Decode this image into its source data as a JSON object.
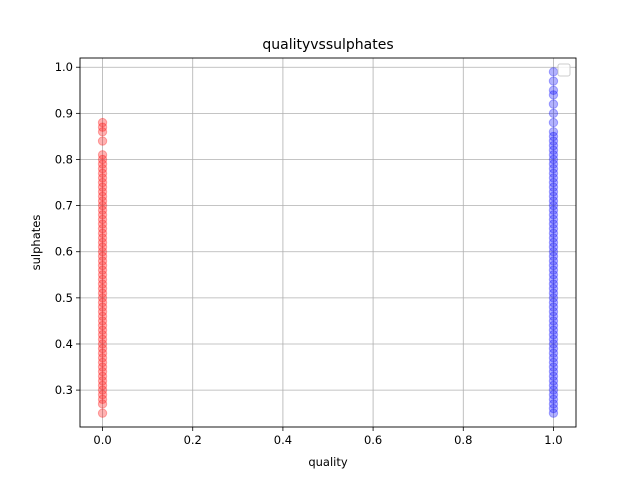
{
  "chart_data": {
    "type": "scatter",
    "title": "qualityvssulphates",
    "xlabel": "quality",
    "ylabel": "sulphates",
    "xlim": [
      -0.05,
      1.05
    ],
    "ylim": [
      0.22,
      1.02
    ],
    "xticks": [
      "0.0",
      "0.2",
      "0.4",
      "0.6",
      "0.8",
      "1.0"
    ],
    "xtick_values": [
      0.0,
      0.2,
      0.4,
      0.6,
      0.8,
      1.0
    ],
    "yticks": [
      "0.3",
      "0.4",
      "0.5",
      "0.6",
      "0.7",
      "0.8",
      "0.9",
      "1.0"
    ],
    "ytick_values": [
      0.3,
      0.4,
      0.5,
      0.6,
      0.7,
      0.8,
      0.9,
      1.0
    ],
    "grid": true,
    "legend": {
      "placement": "top-right",
      "entries": []
    },
    "series": [
      {
        "color": "#ff0000",
        "x": 0,
        "y": [
          0.25,
          0.27,
          0.28,
          0.29,
          0.3,
          0.31,
          0.32,
          0.33,
          0.34,
          0.35,
          0.36,
          0.37,
          0.38,
          0.39,
          0.4,
          0.41,
          0.42,
          0.43,
          0.44,
          0.45,
          0.46,
          0.47,
          0.48,
          0.49,
          0.5,
          0.51,
          0.52,
          0.53,
          0.54,
          0.55,
          0.56,
          0.57,
          0.58,
          0.59,
          0.6,
          0.61,
          0.62,
          0.63,
          0.64,
          0.65,
          0.66,
          0.67,
          0.68,
          0.69,
          0.7,
          0.71,
          0.72,
          0.73,
          0.74,
          0.75,
          0.76,
          0.77,
          0.78,
          0.79,
          0.8,
          0.81,
          0.84,
          0.86,
          0.87,
          0.88
        ]
      },
      {
        "color": "#0000ff",
        "x": 1,
        "y": [
          0.25,
          0.26,
          0.27,
          0.28,
          0.29,
          0.3,
          0.31,
          0.32,
          0.33,
          0.34,
          0.35,
          0.36,
          0.37,
          0.38,
          0.39,
          0.4,
          0.41,
          0.42,
          0.43,
          0.44,
          0.45,
          0.46,
          0.47,
          0.48,
          0.49,
          0.5,
          0.51,
          0.52,
          0.53,
          0.54,
          0.55,
          0.56,
          0.57,
          0.58,
          0.59,
          0.6,
          0.61,
          0.62,
          0.63,
          0.64,
          0.65,
          0.66,
          0.67,
          0.68,
          0.69,
          0.7,
          0.71,
          0.72,
          0.73,
          0.74,
          0.75,
          0.76,
          0.77,
          0.78,
          0.79,
          0.8,
          0.81,
          0.82,
          0.83,
          0.84,
          0.85,
          0.86,
          0.88,
          0.9,
          0.92,
          0.94,
          0.95,
          0.97,
          0.99
        ]
      }
    ]
  }
}
